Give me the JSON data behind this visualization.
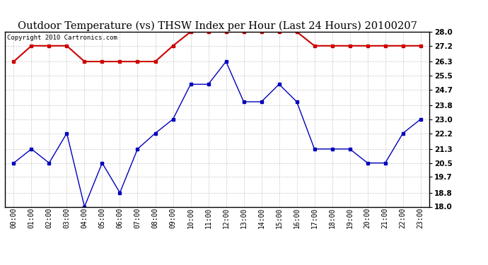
{
  "title": "Outdoor Temperature (vs) THSW Index per Hour (Last 24 Hours) 20100207",
  "copyright": "Copyright 2010 Cartronics.com",
  "hours": [
    "00:00",
    "01:00",
    "02:00",
    "03:00",
    "04:00",
    "05:00",
    "06:00",
    "07:00",
    "08:00",
    "09:00",
    "10:00",
    "11:00",
    "12:00",
    "13:00",
    "14:00",
    "15:00",
    "16:00",
    "17:00",
    "18:00",
    "19:00",
    "20:00",
    "21:00",
    "22:00",
    "23:00"
  ],
  "blue_data": [
    20.5,
    21.3,
    20.5,
    22.2,
    18.0,
    20.5,
    18.8,
    21.3,
    22.2,
    23.0,
    25.0,
    25.0,
    26.3,
    24.0,
    24.0,
    25.0,
    24.0,
    21.3,
    21.3,
    21.3,
    20.5,
    20.5,
    22.2,
    23.0
  ],
  "red_data": [
    26.3,
    27.2,
    27.2,
    27.2,
    26.3,
    26.3,
    26.3,
    26.3,
    26.3,
    27.2,
    28.0,
    28.0,
    28.0,
    28.0,
    28.0,
    28.0,
    28.0,
    27.2,
    27.2,
    27.2,
    27.2,
    27.2,
    27.2,
    27.2
  ],
  "ylim": [
    18.0,
    28.0
  ],
  "yticks": [
    18.0,
    18.8,
    19.7,
    20.5,
    21.3,
    22.2,
    23.0,
    23.8,
    24.7,
    25.5,
    26.3,
    27.2,
    28.0
  ],
  "blue_color": "#0000bb",
  "red_color": "#cc0000",
  "bg_color": "#ffffff",
  "grid_color": "#bbbbbb",
  "title_fontsize": 10.5,
  "copyright_fontsize": 6.5,
  "tick_fontsize": 7,
  "ytick_fontsize": 7.5
}
